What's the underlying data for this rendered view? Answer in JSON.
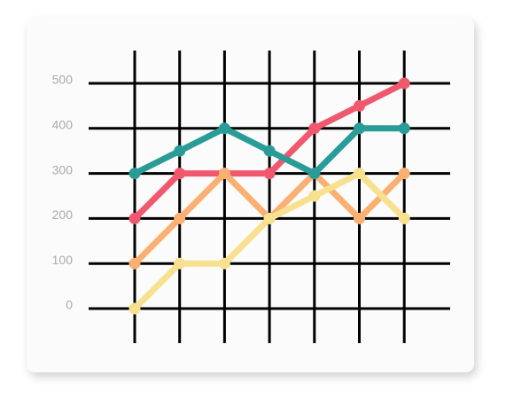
{
  "chart_data": {
    "type": "line",
    "categories": [
      null,
      null,
      null,
      null,
      null,
      null,
      null
    ],
    "series": [
      {
        "color": "#f0586e",
        "values": [
          200,
          300,
          300,
          300,
          400,
          450,
          500
        ]
      },
      {
        "color": "#fbb073",
        "values": [
          100,
          200,
          300,
          200,
          300,
          200,
          300
        ]
      },
      {
        "color": "#f7e18f",
        "values": [
          0,
          100,
          100,
          200,
          250,
          300,
          200
        ]
      },
      {
        "color": "#2a9c98",
        "values": [
          300,
          350,
          400,
          350,
          300,
          400,
          400
        ]
      }
    ],
    "ylim": [
      0,
      500
    ],
    "yticks": [
      0,
      100,
      200,
      300,
      400,
      500
    ],
    "grid": true
  }
}
